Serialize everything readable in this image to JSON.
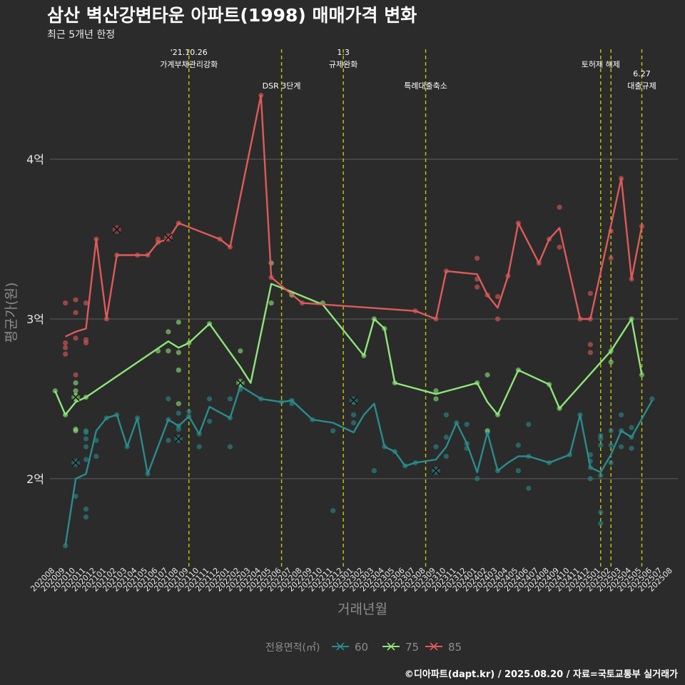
{
  "title": "삼산 벽산강변타운 아파트(1998) 매매가격 변화",
  "subtitle": "최근 5개년 한정",
  "caption": "©디아파트(dapt.kr) / 2025.08.20 / 자료=국토교통부 실거래가",
  "colors": {
    "background": "#2b2b2b",
    "grid": "#5e5e5e",
    "text": "#e6e6e6",
    "axis_title": "#8c8c8c",
    "event_line": "#c8c800"
  },
  "chart_data": {
    "type": "line",
    "xlabel": "거래년월",
    "ylabel": "평균가(원)",
    "ylim": [
      1.45,
      4.72
    ],
    "yticks": [
      {
        "value": 2,
        "label": "2억"
      },
      {
        "value": 3,
        "label": "3억"
      },
      {
        "value": 4,
        "label": "4억"
      }
    ],
    "grid": true,
    "legend_position": "bottom",
    "legend_title": "전용면적(㎡)",
    "categories": [
      "202008",
      "202009",
      "202010",
      "202011",
      "202012",
      "202101",
      "202102",
      "202103",
      "202104",
      "202105",
      "202106",
      "202107",
      "202108",
      "202109",
      "202110",
      "202111",
      "202112",
      "202201",
      "202202",
      "202203",
      "202204",
      "202205",
      "202206",
      "202207",
      "202208",
      "202209",
      "202210",
      "202211",
      "202212",
      "202301",
      "202302",
      "202303",
      "202304",
      "202305",
      "202306",
      "202307",
      "202308",
      "202309",
      "202310",
      "202311",
      "202312",
      "202401",
      "202402",
      "202403",
      "202404",
      "202405",
      "202406",
      "202407",
      "202408",
      "202409",
      "202410",
      "202411",
      "202412",
      "202501",
      "202502",
      "202503",
      "202504",
      "202505",
      "202506",
      "202507",
      "202508"
    ],
    "events": [
      {
        "x": 13.0,
        "labels": [
          "'21.10.26",
          "가계부채관리강화"
        ],
        "label_row": 0
      },
      {
        "x": 22.0,
        "labels": [
          "DSR 3단계"
        ],
        "label_row": 1
      },
      {
        "x": 28.0,
        "labels": [
          "1.3",
          "규제완화"
        ],
        "label_row": 0
      },
      {
        "x": 36.0,
        "labels": [
          "특례대출축소"
        ],
        "label_row": 1
      },
      {
        "x": 53.0,
        "labels": [
          "토허제 해제"
        ],
        "label_row": 0
      },
      {
        "x": 54.0,
        "labels": [],
        "label_row": 0
      },
      {
        "x": 57.0,
        "labels": [
          "6.27",
          "대출규제"
        ],
        "label_row": 1
      }
    ],
    "series": [
      {
        "name": "60",
        "color": "#2a8c8c",
        "line": [
          [
            1,
            1.58
          ],
          [
            2,
            2.0
          ],
          [
            3,
            2.03
          ],
          [
            4,
            2.3
          ],
          [
            5,
            2.38
          ],
          [
            6,
            2.4
          ],
          [
            7,
            2.2
          ],
          [
            8,
            2.38
          ],
          [
            9,
            2.03
          ],
          [
            11,
            2.37
          ],
          [
            12,
            2.33
          ],
          [
            13,
            2.39
          ],
          [
            14,
            2.28
          ],
          [
            15,
            2.45
          ],
          [
            17,
            2.38
          ],
          [
            18,
            2.58
          ],
          [
            20,
            2.5
          ],
          [
            22,
            2.48
          ],
          [
            23,
            2.49
          ],
          [
            25,
            2.37
          ],
          [
            27,
            2.35
          ],
          [
            29,
            2.29
          ],
          [
            30,
            2.4
          ],
          [
            31,
            2.47
          ],
          [
            32,
            2.2
          ],
          [
            33,
            2.17
          ],
          [
            34,
            2.08
          ],
          [
            35,
            2.1
          ],
          [
            37,
            2.12
          ],
          [
            38,
            2.2
          ],
          [
            39,
            2.35
          ],
          [
            40,
            2.22
          ],
          [
            41,
            2.04
          ],
          [
            42,
            2.29
          ],
          [
            43,
            2.05
          ],
          [
            44,
            2.1
          ],
          [
            45,
            2.14
          ],
          [
            46,
            2.14
          ],
          [
            48,
            2.1
          ],
          [
            50,
            2.15
          ],
          [
            51,
            2.4
          ],
          [
            52,
            2.07
          ],
          [
            53,
            2.04
          ],
          [
            54,
            2.15
          ],
          [
            55,
            2.3
          ],
          [
            56,
            2.26
          ],
          [
            58,
            2.49
          ]
        ],
        "points": [
          [
            1,
            1.58
          ],
          [
            2,
            1.89
          ],
          [
            2,
            2.1
          ],
          [
            3,
            1.76
          ],
          [
            3,
            1.81
          ],
          [
            3,
            2.25
          ],
          [
            3,
            2.29
          ],
          [
            3,
            2.3
          ],
          [
            3,
            2.12
          ],
          [
            3,
            2.2
          ],
          [
            4,
            2.24
          ],
          [
            4,
            2.14
          ],
          [
            5,
            2.38
          ],
          [
            6,
            2.4
          ],
          [
            7,
            2.2
          ],
          [
            8,
            2.38
          ],
          [
            9,
            2.03
          ],
          [
            11,
            2.5
          ],
          [
            11,
            2.24
          ],
          [
            11,
            2.37
          ],
          [
            12,
            2.25
          ],
          [
            12,
            2.33
          ],
          [
            12,
            2.31
          ],
          [
            12,
            2.41
          ],
          [
            13,
            2.39
          ],
          [
            13,
            2.42
          ],
          [
            14,
            2.2
          ],
          [
            14,
            2.28
          ],
          [
            15,
            2.5
          ],
          [
            15,
            2.36
          ],
          [
            17,
            2.5
          ],
          [
            17,
            2.2
          ],
          [
            17,
            2.38
          ],
          [
            18,
            2.56
          ],
          [
            20,
            2.5
          ],
          [
            22,
            2.48
          ],
          [
            23,
            2.49
          ],
          [
            23,
            2.47
          ],
          [
            25,
            2.37
          ],
          [
            27,
            1.8
          ],
          [
            27,
            2.3
          ],
          [
            29,
            2.48
          ],
          [
            29,
            2.35
          ],
          [
            29,
            2.4
          ],
          [
            31,
            2.05
          ],
          [
            32,
            2.2
          ],
          [
            33,
            2.17
          ],
          [
            34,
            2.08
          ],
          [
            35,
            2.1
          ],
          [
            37,
            2.05
          ],
          [
            37,
            2.2
          ],
          [
            38,
            2.14
          ],
          [
            38,
            2.26
          ],
          [
            38,
            2.4
          ],
          [
            39,
            2.35
          ],
          [
            40,
            2.22
          ],
          [
            40,
            2.34
          ],
          [
            40,
            2.19
          ],
          [
            41,
            2.0
          ],
          [
            42,
            2.29
          ],
          [
            43,
            2.05
          ],
          [
            45,
            2.21
          ],
          [
            45,
            2.05
          ],
          [
            46,
            2.14
          ],
          [
            46,
            1.94
          ],
          [
            46,
            2.34
          ],
          [
            48,
            2.1
          ],
          [
            50,
            2.15
          ],
          [
            51,
            2.4
          ],
          [
            52,
            2.07
          ],
          [
            52,
            2.11
          ],
          [
            52,
            2.0
          ],
          [
            52,
            2.15
          ],
          [
            53,
            1.72
          ],
          [
            53,
            1.79
          ],
          [
            53,
            2.02
          ],
          [
            53,
            2.25
          ],
          [
            53,
            2.21
          ],
          [
            53,
            2.27
          ],
          [
            54,
            2.3
          ],
          [
            54,
            2.21
          ],
          [
            54,
            2.1
          ],
          [
            55,
            2.3
          ],
          [
            55,
            2.4
          ],
          [
            55,
            2.2
          ],
          [
            56,
            2.26
          ],
          [
            56,
            2.19
          ],
          [
            56,
            2.32
          ],
          [
            58,
            2.5
          ]
        ],
        "markers": [
          [
            2,
            2.1
          ],
          [
            12,
            2.25
          ],
          [
            29,
            2.49
          ],
          [
            37,
            2.05
          ]
        ]
      },
      {
        "name": "75",
        "color": "#8ee67a",
        "line": [
          [
            0,
            2.55
          ],
          [
            1,
            2.4
          ],
          [
            2,
            2.48
          ],
          [
            3,
            2.51
          ],
          [
            11,
            2.86
          ],
          [
            12,
            2.82
          ],
          [
            13,
            2.85
          ],
          [
            15,
            2.97
          ],
          [
            18,
            2.7
          ],
          [
            19,
            2.6
          ],
          [
            21,
            3.22
          ],
          [
            23,
            3.17
          ],
          [
            26,
            3.09
          ],
          [
            30,
            2.77
          ],
          [
            31,
            3.0
          ],
          [
            32,
            2.94
          ],
          [
            33,
            2.6
          ],
          [
            37,
            2.53
          ],
          [
            41,
            2.6
          ],
          [
            42,
            2.48
          ],
          [
            43,
            2.4
          ],
          [
            45,
            2.68
          ],
          [
            48,
            2.59
          ],
          [
            49,
            2.44
          ],
          [
            54,
            2.8
          ],
          [
            56,
            3.0
          ],
          [
            57,
            2.65
          ]
        ],
        "points": [
          [
            0,
            2.55
          ],
          [
            1,
            2.4
          ],
          [
            2,
            2.55
          ],
          [
            2,
            2.5
          ],
          [
            2,
            2.6
          ],
          [
            2,
            2.31
          ],
          [
            2,
            2.3
          ],
          [
            2,
            2.52
          ],
          [
            3,
            2.51
          ],
          [
            10,
            2.8
          ],
          [
            11,
            2.92
          ],
          [
            11,
            2.8
          ],
          [
            12,
            2.98
          ],
          [
            12,
            2.79
          ],
          [
            12,
            2.68
          ],
          [
            12,
            2.47
          ],
          [
            13,
            2.85
          ],
          [
            15,
            2.97
          ],
          [
            18,
            2.6
          ],
          [
            18,
            2.8
          ],
          [
            21,
            3.35
          ],
          [
            21,
            3.1
          ],
          [
            23,
            3.15
          ],
          [
            26,
            3.1
          ],
          [
            30,
            2.77
          ],
          [
            31,
            3.0
          ],
          [
            32,
            2.94
          ],
          [
            33,
            2.6
          ],
          [
            37,
            2.55
          ],
          [
            37,
            2.5
          ],
          [
            41,
            2.6
          ],
          [
            42,
            2.65
          ],
          [
            42,
            2.3
          ],
          [
            43,
            2.4
          ],
          [
            45,
            2.68
          ],
          [
            48,
            2.59
          ],
          [
            49,
            2.44
          ],
          [
            54,
            2.73
          ],
          [
            54,
            2.8
          ],
          [
            56,
            3.0
          ],
          [
            57,
            2.65
          ]
        ],
        "markers": [
          [
            2,
            2.51
          ],
          [
            18,
            2.6
          ]
        ]
      },
      {
        "name": "85",
        "color": "#e05a5a",
        "line": [
          [
            1,
            2.89
          ],
          [
            2,
            2.92
          ],
          [
            3,
            2.94
          ],
          [
            4,
            3.5
          ],
          [
            5,
            3.0
          ],
          [
            6,
            3.4
          ],
          [
            8,
            3.4
          ],
          [
            9,
            3.4
          ],
          [
            10,
            3.48
          ],
          [
            11,
            3.5
          ],
          [
            12,
            3.6
          ],
          [
            16,
            3.5
          ],
          [
            17,
            3.45
          ],
          [
            20,
            4.4
          ],
          [
            21,
            3.26
          ],
          [
            24,
            3.1
          ],
          [
            35,
            3.05
          ],
          [
            37,
            3.0
          ],
          [
            38,
            3.3
          ],
          [
            41,
            3.28
          ],
          [
            42,
            3.15
          ],
          [
            43,
            3.07
          ],
          [
            44,
            3.27
          ],
          [
            45,
            3.6
          ],
          [
            47,
            3.35
          ],
          [
            48,
            3.5
          ],
          [
            49,
            3.57
          ],
          [
            51,
            3.0
          ],
          [
            52,
            3.0
          ],
          [
            55,
            3.88
          ],
          [
            56,
            3.25
          ],
          [
            57,
            3.58
          ]
        ],
        "points": [
          [
            1,
            2.82
          ],
          [
            1,
            2.78
          ],
          [
            1,
            2.85
          ],
          [
            1,
            3.1
          ],
          [
            2,
            2.88
          ],
          [
            2,
            3.04
          ],
          [
            2,
            3.12
          ],
          [
            2,
            2.65
          ],
          [
            3,
            3.1
          ],
          [
            3,
            2.87
          ],
          [
            3,
            2.85
          ],
          [
            4,
            3.5
          ],
          [
            5,
            3.0
          ],
          [
            6,
            3.4
          ],
          [
            8,
            3.4
          ],
          [
            9,
            3.4
          ],
          [
            10,
            3.5
          ],
          [
            10,
            3.48
          ],
          [
            11,
            3.51
          ],
          [
            12,
            3.6
          ],
          [
            16,
            3.5
          ],
          [
            17,
            3.45
          ],
          [
            20,
            4.4
          ],
          [
            21,
            3.26
          ],
          [
            24,
            3.1
          ],
          [
            35,
            3.05
          ],
          [
            37,
            3.0
          ],
          [
            38,
            3.3
          ],
          [
            41,
            3.25
          ],
          [
            41,
            3.38
          ],
          [
            41,
            3.2
          ],
          [
            42,
            3.15
          ],
          [
            43,
            3.0
          ],
          [
            43,
            3.14
          ],
          [
            44,
            3.27
          ],
          [
            45,
            3.6
          ],
          [
            47,
            3.35
          ],
          [
            48,
            3.5
          ],
          [
            49,
            3.7
          ],
          [
            49,
            3.45
          ],
          [
            51,
            3.0
          ],
          [
            52,
            3.0
          ],
          [
            52,
            3.16
          ],
          [
            52,
            2.84
          ],
          [
            52,
            2.79
          ],
          [
            54,
            3.55
          ],
          [
            54,
            3.38
          ],
          [
            55,
            3.88
          ],
          [
            56,
            3.25
          ],
          [
            57,
            3.58
          ]
        ],
        "markers": [
          [
            6,
            3.56
          ],
          [
            11,
            3.51
          ]
        ]
      }
    ]
  }
}
